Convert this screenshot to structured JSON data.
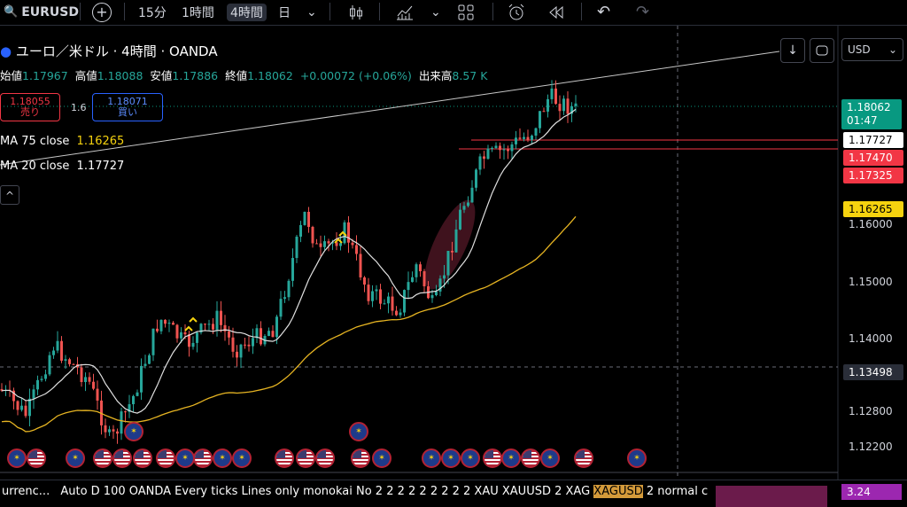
{
  "toolbar": {
    "symbol": "EURUSD",
    "add_symbol": "+",
    "intervals": [
      "15分",
      "1時間",
      "4時間",
      "日"
    ],
    "active_interval": "4時間",
    "undo": "↶",
    "redo": "↷"
  },
  "legend": {
    "title": "ユーロ／米ドル · 4時間 · OANDA",
    "open_label": "始値",
    "open": "1.17967",
    "high_label": "高値",
    "high": "1.18088",
    "low_label": "安値",
    "low": "1.17886",
    "close_label": "終値",
    "close": "1.18062",
    "change": "+0.00072 (+0.06%)",
    "volume_label": "出来高",
    "volume": "8.57 K",
    "sell_price": "1.18055",
    "sell_label": "売り",
    "spread": "1.6",
    "buy_price": "1.18071",
    "buy_label": "買い",
    "ma75_label": "MA 75 close",
    "ma75_value": "1.16265",
    "ma20_label": "MA 20 close",
    "ma20_value": "1.17727",
    "collapse": "^"
  },
  "price_axis": {
    "currency": "USD",
    "ticks": [
      "1.16000",
      "1.15000",
      "1.14000",
      "1.12800",
      "1.12200"
    ],
    "current_price": "1.18062",
    "countdown": "01:47",
    "ma20_tag": "1.17727",
    "level1": "1.17470",
    "level2": "1.17325",
    "ma75_tag": "1.16265",
    "crosshair_price": "1.13498",
    "bottom_tag": "3.24"
  },
  "bottom_bar": {
    "text_left": "urrenc...",
    "text_main": "Auto D 100 OANDA Every ticks Lines only monokai No 2 2 2 2 2 2 2 2 2 XAU XAUUSD 2 XAG",
    "text_highlight": "XAGUSD",
    "text_tail": "2 normal c"
  },
  "colors": {
    "up": "#26a69a",
    "down": "#ef5350",
    "ma20": "#e0e0e0",
    "ma75": "#e6b422",
    "level": "#f23645",
    "bg": "#000000",
    "accent": "#2962ff"
  }
}
